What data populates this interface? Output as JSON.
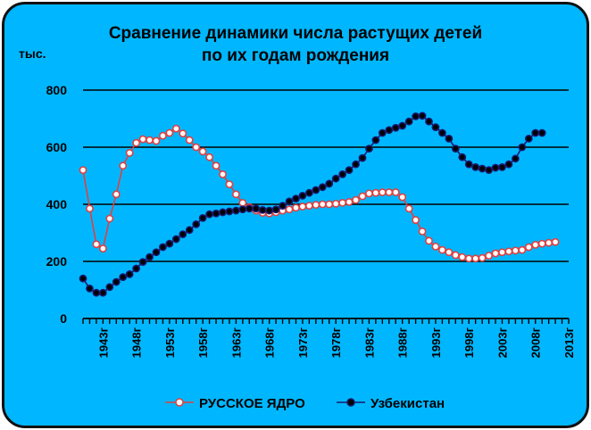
{
  "chart_data": {
    "type": "line",
    "title_lines": [
      "Сравнение динамики числа растущих детей",
      "по их годам рождения"
    ],
    "ylabel": "тыс.",
    "ylim": [
      0,
      800
    ],
    "yticks": [
      0,
      200,
      400,
      600,
      800
    ],
    "xlim": [
      1940,
      2013
    ],
    "xticks": [
      "1943г",
      "1948г",
      "1953г",
      "1958г",
      "1963г",
      "1968г",
      "1973г",
      "1978г",
      "1983г",
      "1988г",
      "1993г",
      "1998г",
      "2003г",
      "2008г",
      "2013г"
    ],
    "grid": true,
    "legend_position": "bottom",
    "series": [
      {
        "name": "РУССКОЕ ЯДРО",
        "color": "#e04040",
        "fill": "#ffffff",
        "x": [
          1940,
          1941,
          1942,
          1943,
          1944,
          1945,
          1946,
          1947,
          1948,
          1949,
          1950,
          1951,
          1952,
          1953,
          1954,
          1955,
          1956,
          1957,
          1958,
          1959,
          1960,
          1961,
          1962,
          1963,
          1964,
          1965,
          1966,
          1967,
          1968,
          1969,
          1970,
          1971,
          1972,
          1973,
          1974,
          1975,
          1976,
          1977,
          1978,
          1979,
          1980,
          1981,
          1982,
          1983,
          1984,
          1985,
          1986,
          1987,
          1988,
          1989,
          1990,
          1991,
          1992,
          1993,
          1994,
          1995,
          1996,
          1997,
          1998,
          1999,
          2000,
          2001,
          2002,
          2003,
          2004,
          2005,
          2006,
          2007,
          2008,
          2009,
          2010,
          2011
        ],
        "values": [
          520,
          385,
          260,
          245,
          350,
          435,
          535,
          580,
          615,
          628,
          625,
          622,
          640,
          650,
          665,
          648,
          625,
          600,
          585,
          565,
          535,
          505,
          470,
          435,
          405,
          390,
          378,
          370,
          368,
          372,
          378,
          382,
          388,
          392,
          395,
          398,
          400,
          400,
          402,
          405,
          408,
          415,
          428,
          438,
          440,
          442,
          442,
          442,
          425,
          385,
          345,
          305,
          272,
          252,
          240,
          232,
          222,
          215,
          210,
          210,
          212,
          220,
          228,
          232,
          235,
          238,
          240,
          250,
          258,
          262,
          265,
          268
        ]
      },
      {
        "name": "Узбекистан",
        "color": "#1a1a6e",
        "fill": "#000000",
        "x": [
          1940,
          1941,
          1942,
          1943,
          1944,
          1945,
          1946,
          1947,
          1948,
          1949,
          1950,
          1951,
          1952,
          1953,
          1954,
          1955,
          1956,
          1957,
          1958,
          1959,
          1960,
          1961,
          1962,
          1963,
          1964,
          1965,
          1966,
          1967,
          1968,
          1969,
          1970,
          1971,
          1972,
          1973,
          1974,
          1975,
          1976,
          1977,
          1978,
          1979,
          1980,
          1981,
          1982,
          1983,
          1984,
          1985,
          1986,
          1987,
          1988,
          1989,
          1990,
          1991,
          1992,
          1993,
          1994,
          1995,
          1996,
          1997,
          1998,
          1999,
          2000,
          2001,
          2002,
          2003,
          2004,
          2005,
          2006,
          2007,
          2008,
          2009
        ],
        "values": [
          140,
          105,
          90,
          90,
          110,
          128,
          145,
          155,
          175,
          198,
          215,
          232,
          250,
          262,
          278,
          295,
          310,
          330,
          352,
          365,
          368,
          372,
          375,
          378,
          382,
          385,
          385,
          380,
          378,
          382,
          395,
          410,
          420,
          430,
          440,
          450,
          460,
          472,
          490,
          505,
          520,
          540,
          562,
          595,
          625,
          650,
          660,
          668,
          675,
          690,
          708,
          710,
          690,
          670,
          650,
          630,
          595,
          565,
          540,
          530,
          525,
          520,
          528,
          530,
          540,
          560,
          600,
          630,
          650,
          650
        ]
      }
    ]
  }
}
